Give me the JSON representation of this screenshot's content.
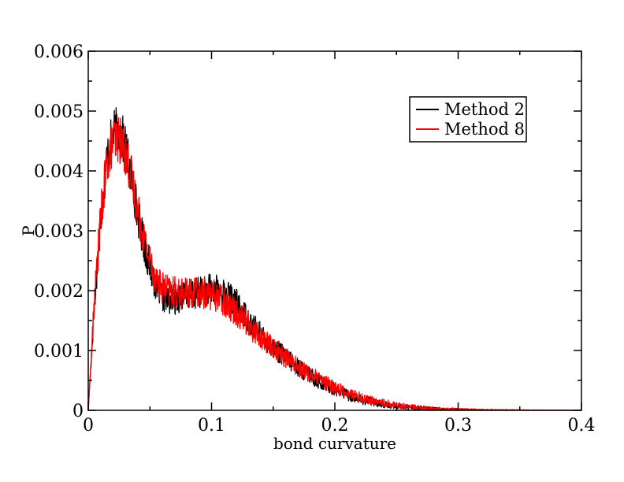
{
  "chart_data": {
    "type": "line",
    "title": "",
    "xlabel": "bond curvature",
    "ylabel": "P",
    "xlim": [
      0,
      0.4
    ],
    "ylim": [
      0,
      0.006
    ],
    "x_ticks": [
      "0",
      "0.1",
      "0.2",
      "0.3",
      "0.4"
    ],
    "y_ticks": [
      "0",
      "0.001",
      "0.002",
      "0.003",
      "0.004",
      "0.005",
      "0.006"
    ],
    "grid": false,
    "legend_position": "top-right",
    "series": [
      {
        "name": "Method 2",
        "color": "#000000",
        "x": [
          0,
          0.005,
          0.01,
          0.015,
          0.02,
          0.025,
          0.03,
          0.035,
          0.04,
          0.045,
          0.05,
          0.055,
          0.06,
          0.065,
          0.07,
          0.075,
          0.08,
          0.085,
          0.09,
          0.095,
          0.1,
          0.105,
          0.11,
          0.115,
          0.12,
          0.125,
          0.13,
          0.135,
          0.14,
          0.15,
          0.16,
          0.17,
          0.18,
          0.19,
          0.2,
          0.21,
          0.22,
          0.23,
          0.24,
          0.25,
          0.26,
          0.27,
          0.28,
          0.29,
          0.3,
          0.31,
          0.32,
          0.33,
          0.34,
          0.35,
          0.36,
          0.37,
          0.38,
          0.39,
          0.4
        ],
        "y": [
          0,
          0.0018,
          0.0032,
          0.0042,
          0.0046,
          0.0047,
          0.0044,
          0.0039,
          0.0033,
          0.0028,
          0.0024,
          0.0021,
          0.0019,
          0.00185,
          0.00185,
          0.0019,
          0.00192,
          0.00195,
          0.00198,
          0.002,
          0.00202,
          0.002,
          0.00195,
          0.00188,
          0.00178,
          0.00165,
          0.0015,
          0.00138,
          0.00125,
          0.00105,
          0.00088,
          0.00072,
          0.00058,
          0.00045,
          0.00035,
          0.00026,
          0.00019,
          0.00014,
          0.0001,
          7e-05,
          5e-05,
          3.5e-05,
          2.5e-05,
          1.8e-05,
          1.2e-05,
          8e-06,
          5e-06,
          3e-06,
          2e-06,
          1.5e-06,
          1e-06,
          6e-07,
          4e-07,
          2e-07,
          1e-07
        ]
      },
      {
        "name": "Method 8",
        "color": "#ff0000",
        "x": [
          0,
          0.005,
          0.01,
          0.015,
          0.02,
          0.025,
          0.03,
          0.035,
          0.04,
          0.045,
          0.05,
          0.055,
          0.06,
          0.065,
          0.07,
          0.075,
          0.08,
          0.085,
          0.09,
          0.095,
          0.1,
          0.105,
          0.11,
          0.115,
          0.12,
          0.125,
          0.13,
          0.135,
          0.14,
          0.15,
          0.16,
          0.17,
          0.18,
          0.19,
          0.2,
          0.21,
          0.22,
          0.23,
          0.24,
          0.25,
          0.26,
          0.27,
          0.28,
          0.29,
          0.3,
          0.31,
          0.32,
          0.33,
          0.34,
          0.35,
          0.36,
          0.37,
          0.38,
          0.39,
          0.4
        ],
        "y": [
          0,
          0.0018,
          0.0032,
          0.0041,
          0.0045,
          0.00455,
          0.0043,
          0.0039,
          0.00335,
          0.0029,
          0.0025,
          0.0022,
          0.00205,
          0.002,
          0.00197,
          0.00195,
          0.00195,
          0.00196,
          0.00197,
          0.00196,
          0.00194,
          0.0019,
          0.00184,
          0.00175,
          0.00165,
          0.00155,
          0.00142,
          0.00132,
          0.00122,
          0.00104,
          0.00088,
          0.00073,
          0.0006,
          0.00048,
          0.00038,
          0.00029,
          0.00022,
          0.00016,
          0.00012,
          8.5e-05,
          6e-05,
          4.2e-05,
          3e-05,
          2.2e-05,
          1.5e-05,
          1e-05,
          7e-06,
          5e-06,
          3.5e-06,
          2.5e-06,
          1.5e-06,
          1e-06,
          6e-07,
          3e-07,
          1e-07
        ]
      }
    ]
  }
}
